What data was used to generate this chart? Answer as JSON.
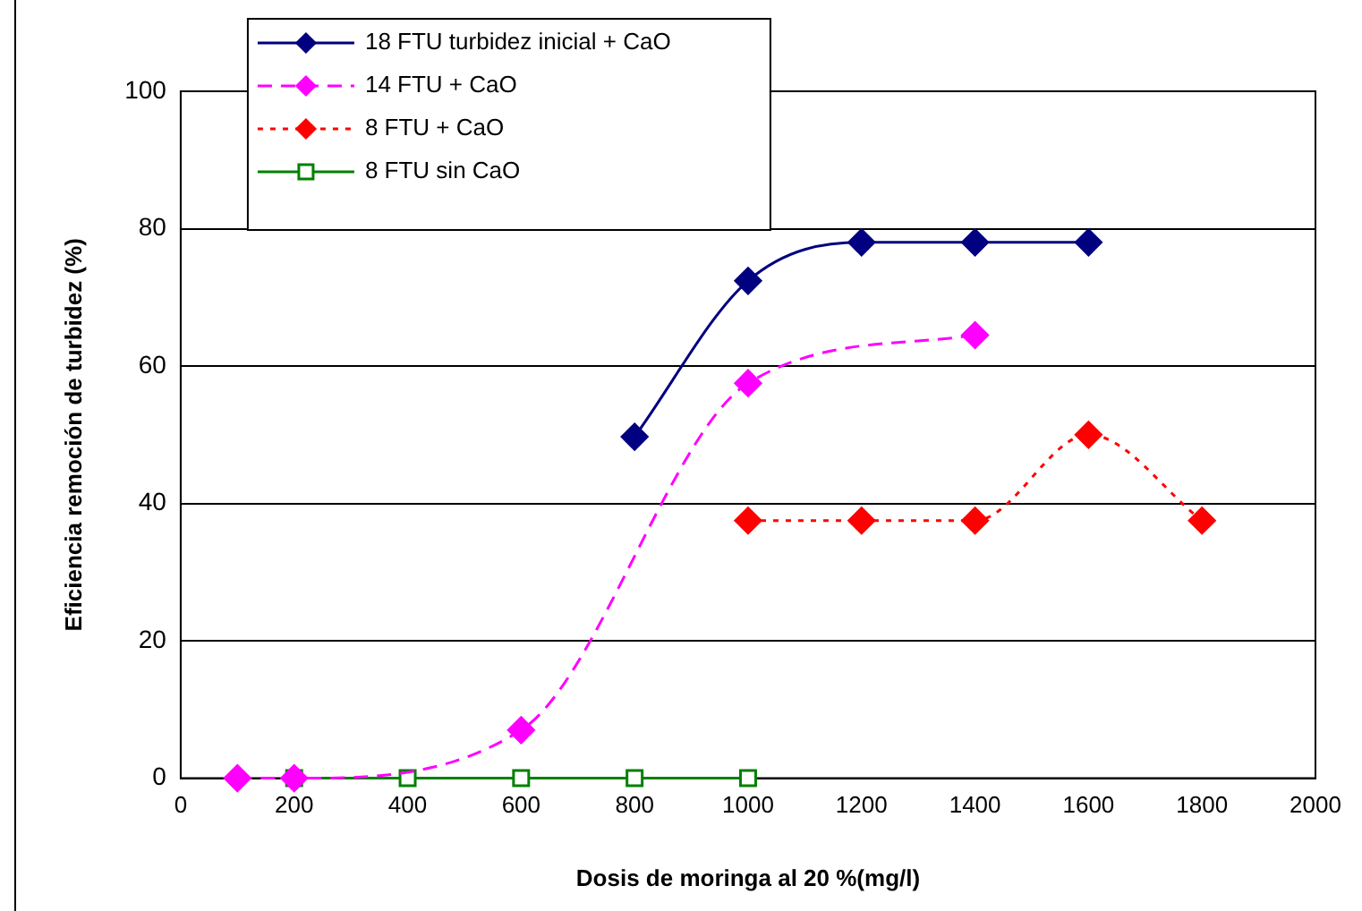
{
  "chart_data": {
    "type": "line",
    "xlabel": "Dosis de moringa al 20 %(mg/l)",
    "ylabel": "Eficiencia remoción de turbidez (%)",
    "xlim": [
      0,
      2000
    ],
    "xticks": [
      0,
      200,
      400,
      600,
      800,
      1000,
      1200,
      1400,
      1600,
      1800,
      2000
    ],
    "ylim": [
      0,
      100
    ],
    "yticks": [
      0,
      20,
      40,
      60,
      80,
      100
    ],
    "grid": "y",
    "legend": "top left",
    "series": [
      {
        "name": "18 FTU turbidez inicial + CaO",
        "color": "#000080",
        "marker": "diamond",
        "line_style": "solid",
        "x": [
          800,
          1000,
          1200,
          1400,
          1600
        ],
        "values": [
          49.7,
          72.4,
          78,
          78,
          78
        ]
      },
      {
        "name": "14 FTU + CaO",
        "color": "#ff00ff",
        "marker": "diamond",
        "line_style": "dashed",
        "x": [
          100,
          200,
          600,
          1000,
          1400
        ],
        "values": [
          0,
          0,
          7,
          57.5,
          64.5
        ]
      },
      {
        "name": "8 FTU + CaO",
        "color": "#ff0000",
        "marker": "diamond",
        "line_style": "dotted",
        "x": [
          1000,
          1200,
          1400,
          1600,
          1800
        ],
        "values": [
          37.5,
          37.5,
          37.5,
          50,
          37.5
        ]
      },
      {
        "name": "8 FTU sin CaO",
        "color": "#008000",
        "marker": "square",
        "line_style": "solid",
        "x": [
          200,
          400,
          600,
          800,
          1000
        ],
        "values": [
          0,
          0,
          0,
          0,
          0
        ]
      }
    ]
  }
}
